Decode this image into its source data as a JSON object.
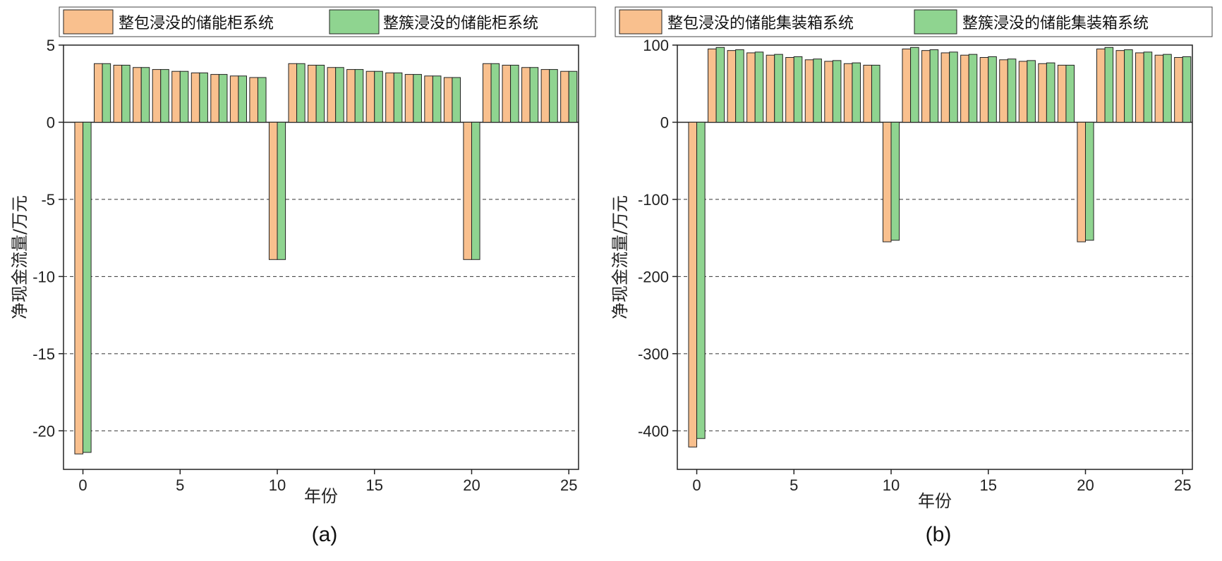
{
  "colors": {
    "series_1": "#f9c08e",
    "series_2": "#8fd490",
    "grid": "#333333"
  },
  "chart_data": [
    {
      "panel_label": "(a)",
      "type": "bar",
      "xlabel": "年份",
      "ylabel": "净现金流量/万元",
      "ylim": [
        -22.5,
        5
      ],
      "yticks": [
        5,
        0,
        -5,
        -10,
        -15,
        -20
      ],
      "xticks": [
        0,
        5,
        10,
        15,
        20,
        25
      ],
      "xlim": [
        -1,
        25.5
      ],
      "grid": "dashed horizontal",
      "legend_position": "top",
      "x": [
        0,
        1,
        2,
        3,
        4,
        5,
        6,
        7,
        8,
        9,
        10,
        11,
        12,
        13,
        14,
        15,
        16,
        17,
        18,
        19,
        20,
        21,
        22,
        23,
        24,
        25
      ],
      "series": [
        {
          "name": "整包浸没的储能柜系统",
          "values": [
            -21.5,
            3.8,
            3.7,
            3.55,
            3.42,
            3.3,
            3.2,
            3.1,
            3.0,
            2.9,
            -8.9,
            3.8,
            3.7,
            3.55,
            3.42,
            3.3,
            3.2,
            3.1,
            3.0,
            2.9,
            -8.9,
            3.8,
            3.7,
            3.55,
            3.42,
            3.3
          ]
        },
        {
          "name": "整簇浸没的储能柜系统",
          "values": [
            -21.4,
            3.8,
            3.7,
            3.55,
            3.42,
            3.3,
            3.2,
            3.1,
            3.0,
            2.9,
            -8.9,
            3.8,
            3.7,
            3.55,
            3.42,
            3.3,
            3.2,
            3.1,
            3.0,
            2.9,
            -8.9,
            3.8,
            3.7,
            3.55,
            3.42,
            3.3
          ]
        }
      ]
    },
    {
      "panel_label": "(b)",
      "type": "bar",
      "xlabel": "年份",
      "ylabel": "净现金流量/万元",
      "ylim": [
        -450,
        100
      ],
      "yticks": [
        100,
        0,
        -100,
        -200,
        -300,
        -400
      ],
      "xticks": [
        0,
        5,
        10,
        15,
        20,
        25
      ],
      "xlim": [
        -1,
        25.5
      ],
      "grid": "dashed horizontal",
      "legend_position": "top",
      "x": [
        0,
        1,
        2,
        3,
        4,
        5,
        6,
        7,
        8,
        9,
        10,
        11,
        12,
        13,
        14,
        15,
        16,
        17,
        18,
        19,
        20,
        21,
        22,
        23,
        24,
        25
      ],
      "series": [
        {
          "name": "整包浸没的储能集装箱系统",
          "values": [
            -421,
            95,
            93,
            90,
            87,
            84,
            81,
            79,
            76,
            74,
            -155,
            95,
            93,
            90,
            87,
            84,
            81,
            79,
            76,
            74,
            -155,
            95,
            93,
            90,
            87,
            84
          ]
        },
        {
          "name": "整簇浸没的储能集装箱系统",
          "values": [
            -410,
            97,
            94,
            91,
            88,
            85,
            82,
            80,
            77,
            74,
            -153,
            97,
            94,
            91,
            88,
            85,
            82,
            80,
            77,
            74,
            -153,
            97,
            94,
            91,
            88,
            85
          ]
        }
      ]
    }
  ]
}
